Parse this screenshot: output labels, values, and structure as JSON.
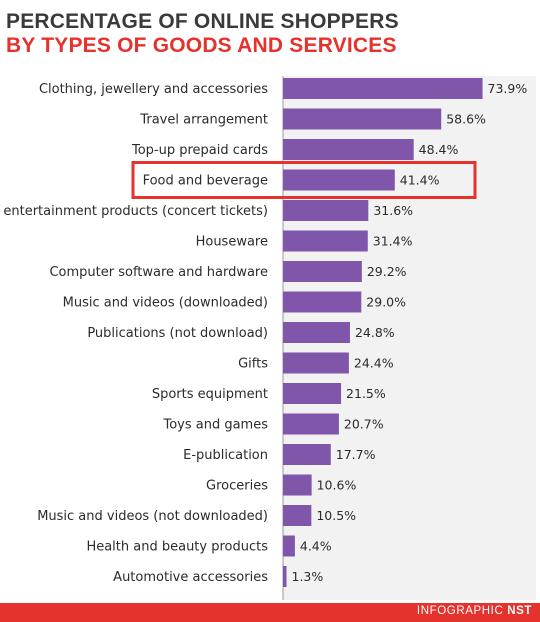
{
  "header": {
    "title_line1": "PERCENTAGE OF ONLINE SHOPPERS",
    "title_line2": "BY TYPES OF GOODS AND SERVICES"
  },
  "footer": {
    "prefix": "INFOGRAPHIC",
    "brand": "NST"
  },
  "highlight": {
    "category": "Food and beverage",
    "color": "#e5322d"
  },
  "colors": {
    "bar": "#7f56a9",
    "panel": "#f2f2f2",
    "axis": "#9b9b9b"
  },
  "chart_data": {
    "type": "bar",
    "orientation": "horizontal",
    "categories": [
      "Clothing, jewellery and accessories",
      "Travel arrangement",
      "Top-up prepaid cards",
      "Food and beverage",
      "Other entertainment products (concert tickets)",
      "Houseware",
      "Computer software and hardware",
      "Music and videos (downloaded)",
      "Publications (not download)",
      "Gifts",
      "Sports equipment",
      "Toys and games",
      "E-publication",
      "Groceries",
      "Music and videos (not downloaded)",
      "Health and beauty products",
      "Automotive accessories"
    ],
    "values": [
      73.9,
      58.6,
      48.4,
      41.4,
      31.6,
      31.4,
      29.2,
      29.0,
      24.8,
      24.4,
      21.5,
      20.7,
      17.7,
      10.6,
      10.5,
      4.4,
      1.3
    ],
    "value_labels": [
      "73.9%",
      "58.6%",
      "48.4%",
      "41.4%",
      "31.6%",
      "31.4%",
      "29.2%",
      "29.0%",
      "24.8%",
      "24.4%",
      "21.5%",
      "20.7%",
      "17.7%",
      "10.6%",
      "10.5%",
      "4.4%",
      "1.3%"
    ],
    "xlim": [
      0,
      100
    ],
    "grid": false,
    "legend": "none"
  }
}
